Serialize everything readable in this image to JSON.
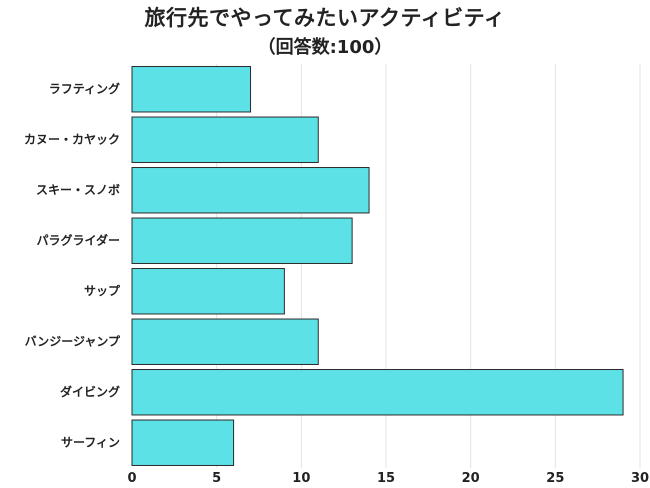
{
  "chart": {
    "title": "旅行先でやってみたいアクティビティ",
    "subtitle": "（回答数:100）"
  },
  "chart_data": {
    "type": "bar",
    "orientation": "horizontal",
    "title": "旅行先でやってみたいアクティビティ",
    "subtitle": "（回答数:100）",
    "categories": [
      "ラフティング",
      "カヌー・カヤック",
      "スキー・スノボ",
      "パラグライダー",
      "サップ",
      "バンジージャンプ",
      "ダイビング",
      "サーフィン"
    ],
    "values": [
      7,
      11,
      14,
      13,
      9,
      11,
      29,
      6
    ],
    "xlim": [
      0,
      30
    ],
    "xticks": [
      0,
      5,
      10,
      15,
      20,
      25,
      30
    ],
    "xlabel": "",
    "ylabel": "",
    "grid": "vertical",
    "legend": "none",
    "colors": {
      "bar_fill": "#5ce1e6",
      "bar_stroke": "#2a2a2a",
      "grid": "#e3e3e3",
      "text": "#222222"
    }
  }
}
